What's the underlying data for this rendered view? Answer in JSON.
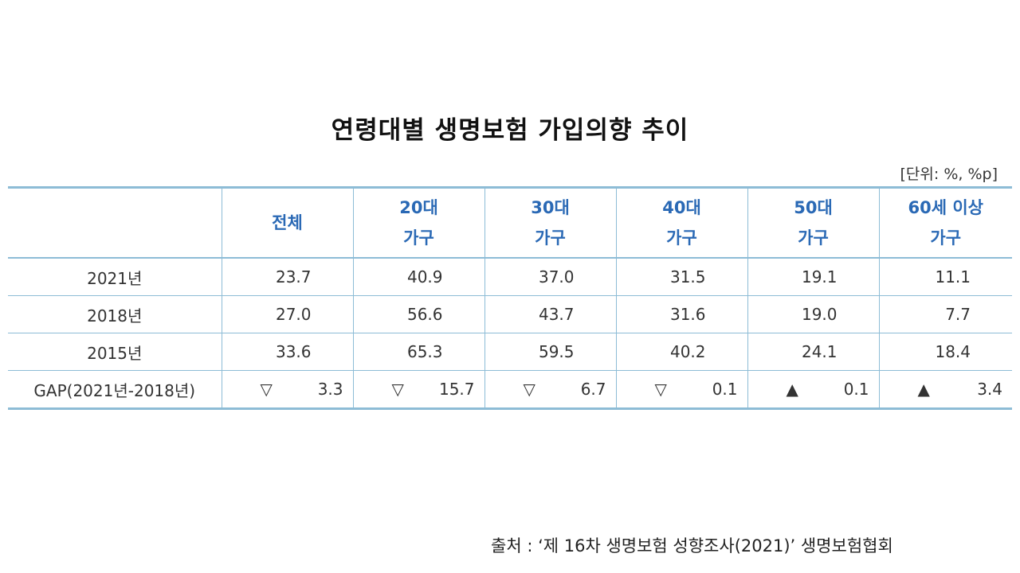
{
  "title": "연령대별 생명보험 가입의향 추이",
  "unit": "[단위: %, %p]",
  "source": "출처 : ‘제 16차 생명보험 성향조사(2021)’ 생명보험협회",
  "chart_data": {
    "type": "table",
    "columns": [
      {
        "line1": "전체",
        "line2": ""
      },
      {
        "line1": "20대",
        "line2": "가구"
      },
      {
        "line1": "30대",
        "line2": "가구"
      },
      {
        "line1": "40대",
        "line2": "가구"
      },
      {
        "line1": "50대",
        "line2": "가구"
      },
      {
        "line1": "60세 이상",
        "line2": "가구"
      }
    ],
    "rows": [
      {
        "label": "2021년",
        "values": [
          "23.7",
          "40.9",
          "37.0",
          "31.5",
          "19.1",
          "11.1"
        ]
      },
      {
        "label": "2018년",
        "values": [
          "27.0",
          "56.6",
          "43.7",
          "31.6",
          "19.0",
          "7.7"
        ]
      },
      {
        "label": "2015년",
        "values": [
          "33.6",
          "65.3",
          "59.5",
          "40.2",
          "24.1",
          "18.4"
        ]
      }
    ],
    "gap": {
      "label": "GAP(2021년-2018년)",
      "values": [
        {
          "symbol": "▽",
          "value": "3.3"
        },
        {
          "symbol": "▽",
          "value": "15.7"
        },
        {
          "symbol": "▽",
          "value": "6.7"
        },
        {
          "symbol": "▽",
          "value": "0.1"
        },
        {
          "symbol": "▲",
          "value": "0.1"
        },
        {
          "symbol": "▲",
          "value": "3.4"
        }
      ]
    }
  }
}
